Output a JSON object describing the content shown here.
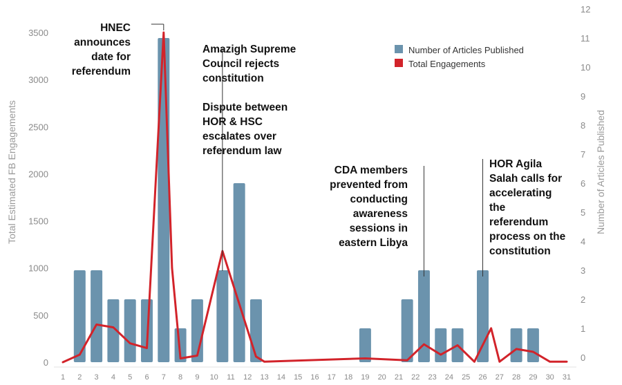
{
  "chart_data": {
    "type": "bar",
    "x": [
      1,
      2,
      3,
      4,
      5,
      6,
      7,
      8,
      9,
      10,
      11,
      12,
      13,
      14,
      15,
      16,
      17,
      18,
      19,
      20,
      21,
      22,
      23,
      24,
      25,
      26,
      27,
      28,
      29,
      30,
      31
    ],
    "x_tick_labels": [
      "1",
      "2",
      "3",
      "4",
      "5",
      "6",
      "7",
      "8",
      "9",
      "10",
      "11",
      "12",
      "13",
      "14",
      "15",
      "16",
      "17",
      "18",
      "19",
      "20",
      "21",
      "22",
      "23",
      "24",
      "25",
      "26",
      "27",
      "28",
      "29",
      "30",
      "31"
    ],
    "series": [
      {
        "name": "Number of Articles Published",
        "type": "bar",
        "axis": "right",
        "color": "#6b93ad",
        "points": [
          {
            "x": 2,
            "y": 3
          },
          {
            "x": 3,
            "y": 3
          },
          {
            "x": 4,
            "y": 2
          },
          {
            "x": 5,
            "y": 2
          },
          {
            "x": 6,
            "y": 2
          },
          {
            "x": 7,
            "y": 11
          },
          {
            "x": 8,
            "y": 1
          },
          {
            "x": 9,
            "y": 2
          },
          {
            "x": 10.5,
            "y": 3
          },
          {
            "x": 11.5,
            "y": 6
          },
          {
            "x": 12.5,
            "y": 2
          },
          {
            "x": 19,
            "y": 1
          },
          {
            "x": 21.5,
            "y": 2
          },
          {
            "x": 22.5,
            "y": 3
          },
          {
            "x": 23.5,
            "y": 1
          },
          {
            "x": 24.5,
            "y": 1
          },
          {
            "x": 26,
            "y": 3
          },
          {
            "x": 28,
            "y": 1
          },
          {
            "x": 29,
            "y": 1
          }
        ]
      },
      {
        "name": "Total Engagements",
        "type": "line",
        "axis": "left",
        "color": "#d2232a",
        "points": [
          {
            "x": 1,
            "y": 0
          },
          {
            "x": 2,
            "y": 80
          },
          {
            "x": 3,
            "y": 400
          },
          {
            "x": 4,
            "y": 370
          },
          {
            "x": 5,
            "y": 200
          },
          {
            "x": 6,
            "y": 150
          },
          {
            "x": 7,
            "y": 3500
          },
          {
            "x": 7.5,
            "y": 1000
          },
          {
            "x": 8,
            "y": 40
          },
          {
            "x": 9,
            "y": 70
          },
          {
            "x": 10.5,
            "y": 1180
          },
          {
            "x": 12.5,
            "y": 60
          },
          {
            "x": 13,
            "y": 5
          },
          {
            "x": 19,
            "y": 40
          },
          {
            "x": 21.5,
            "y": 20
          },
          {
            "x": 22.5,
            "y": 190
          },
          {
            "x": 23.5,
            "y": 80
          },
          {
            "x": 24.5,
            "y": 180
          },
          {
            "x": 25.5,
            "y": 5
          },
          {
            "x": 26.5,
            "y": 360
          },
          {
            "x": 27,
            "y": 5
          },
          {
            "x": 28,
            "y": 140
          },
          {
            "x": 29,
            "y": 110
          },
          {
            "x": 30,
            "y": 5
          },
          {
            "x": 31,
            "y": 5
          }
        ]
      }
    ],
    "ylabel": "Total Estimated FB Engagements",
    "y2label": "Number of Articles Published",
    "ylim": [
      0,
      3500
    ],
    "y_ticks": [
      0,
      500,
      1000,
      1500,
      2000,
      2500,
      3000,
      3500
    ],
    "y2lim": [
      0,
      12
    ],
    "y2_ticks": [
      0,
      1,
      2,
      3,
      4,
      5,
      6,
      7,
      8,
      9,
      10,
      11,
      12
    ],
    "grid": false,
    "legend_placement": "top-right",
    "annotations": [
      {
        "x": 7,
        "lines": [
          "HNEC",
          "announces",
          "date for",
          "referendum"
        ]
      },
      {
        "x": 10.5,
        "lines": [
          "Amazigh Supreme",
          "Council rejects",
          "constitution",
          "",
          "Dispute between",
          "HOR & HSC",
          "escalates over",
          "referendum law"
        ]
      },
      {
        "x": 22.5,
        "lines": [
          "CDA members",
          "prevented from",
          "conducting",
          "awareness",
          "sessions in",
          "eastern Libya"
        ]
      },
      {
        "x": 26,
        "lines": [
          "HOR Agila",
          "Salah calls for",
          "accelerating",
          "the",
          "referendum",
          "process on the",
          "constitution"
        ]
      }
    ]
  }
}
